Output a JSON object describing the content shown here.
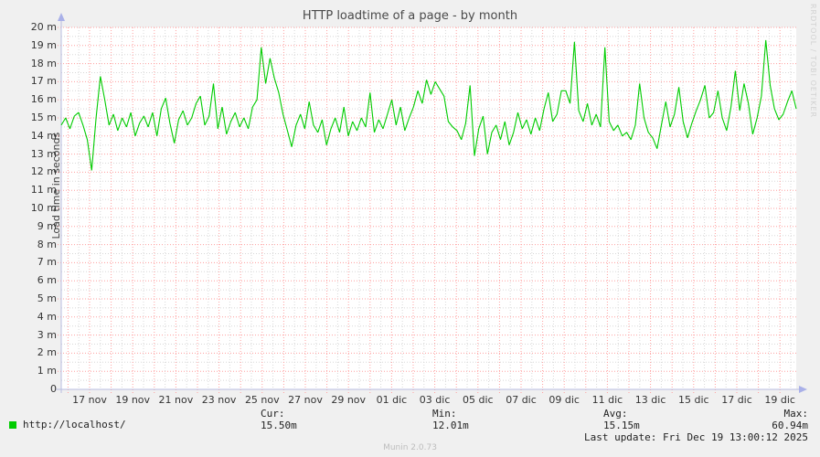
{
  "title": "HTTP loadtime of a page - by month",
  "watermark": "RRDTOOL / TOBI OETIKER",
  "footer": "Munin 2.0.73",
  "y_axis": {
    "label": "Load time in seconds",
    "ticks": [
      "20 m",
      "19 m",
      "18 m",
      "17 m",
      "16 m",
      "15 m",
      "14 m",
      "13 m",
      "12 m",
      "11 m",
      "10 m",
      "9 m",
      "8 m",
      "7 m",
      "6 m",
      "5 m",
      "4 m",
      "3 m",
      "2 m",
      "1 m",
      "0"
    ]
  },
  "x_axis": {
    "ticks": [
      "17 nov",
      "19 nov",
      "21 nov",
      "23 nov",
      "25 nov",
      "27 nov",
      "29 nov",
      "01 dic",
      "03 dic",
      "05 dic",
      "07 dic",
      "09 dic",
      "11 dic",
      "13 dic",
      "15 dic",
      "17 dic",
      "19 dic"
    ]
  },
  "legend": {
    "series_label": "http://localhost/",
    "series_color": "#00cc00",
    "stats": [
      {
        "name": "Cur:",
        "value": "15.50m"
      },
      {
        "name": "Min:",
        "value": "12.01m"
      },
      {
        "name": "Avg:",
        "value": "15.15m"
      },
      {
        "name": "Max:",
        "value": "60.94m"
      }
    ],
    "last_update": "Last update: Fri Dec 19 13:00:12 2025"
  },
  "chart_data": {
    "type": "line",
    "title": "HTTP loadtime of a page - by month",
    "ylabel": "Load time in seconds",
    "y_unit": "m (milliseconds)",
    "ylim": [
      0,
      20
    ],
    "grid": {
      "major_color": "#ff9f9f",
      "minor_color": "#d8d8d8",
      "major_step_y_m": 1,
      "minor_step_y_m": 0.5,
      "major_step_x_days": 1,
      "minor_step_x_days": 0.5
    },
    "x_tick_labels": [
      "17 nov",
      "19 nov",
      "21 nov",
      "23 nov",
      "25 nov",
      "27 nov",
      "29 nov",
      "01 dic",
      "03 dic",
      "05 dic",
      "07 dic",
      "09 dic",
      "11 dic",
      "13 dic",
      "15 dic",
      "17 dic",
      "19 dic"
    ],
    "stats": {
      "cur": "15.50m",
      "min": "12.01m",
      "avg": "15.15m",
      "max": "60.94m"
    },
    "series": [
      {
        "name": "http://localhost/",
        "color": "#00cc00",
        "values_m": [
          14.6,
          15.0,
          14.4,
          15.1,
          15.3,
          14.6,
          13.8,
          12.1,
          15.0,
          17.3,
          16.0,
          14.6,
          15.2,
          14.3,
          15.0,
          14.5,
          15.3,
          14.0,
          14.7,
          15.1,
          14.5,
          15.3,
          14.0,
          15.5,
          16.1,
          14.7,
          13.6,
          14.9,
          15.4,
          14.6,
          15.0,
          15.8,
          16.2,
          14.6,
          15.1,
          16.9,
          14.4,
          15.6,
          14.1,
          14.8,
          15.3,
          14.5,
          15.0,
          14.4,
          15.6,
          16.0,
          18.9,
          16.9,
          18.3,
          17.2,
          16.4,
          15.2,
          14.3,
          13.4,
          14.6,
          15.2,
          14.4,
          15.9,
          14.6,
          14.2,
          14.9,
          13.5,
          14.4,
          15.0,
          14.2,
          15.6,
          14.0,
          14.8,
          14.3,
          15.0,
          14.5,
          16.4,
          14.2,
          14.9,
          14.4,
          15.2,
          16.0,
          14.6,
          15.6,
          14.3,
          15.0,
          15.6,
          16.5,
          15.8,
          17.1,
          16.3,
          17.0,
          16.6,
          16.2,
          14.8,
          14.5,
          14.3,
          13.8,
          14.7,
          16.8,
          12.9,
          14.4,
          15.1,
          13.0,
          14.2,
          14.6,
          13.8,
          14.8,
          13.5,
          14.2,
          15.3,
          14.4,
          14.9,
          14.1,
          15.0,
          14.3,
          15.5,
          16.4,
          14.8,
          15.2,
          16.5,
          16.5,
          15.8,
          19.2,
          15.4,
          14.8,
          15.8,
          14.6,
          15.2,
          14.5,
          18.9,
          14.8,
          14.3,
          14.6,
          14.0,
          14.2,
          13.8,
          14.6,
          16.9,
          15.0,
          14.2,
          13.9,
          13.3,
          14.6,
          15.9,
          14.5,
          15.2,
          16.7,
          14.8,
          13.9,
          14.7,
          15.4,
          16.0,
          16.8,
          15.0,
          15.3,
          16.5,
          15.0,
          14.3,
          15.6,
          17.6,
          15.4,
          16.9,
          15.8,
          14.1,
          15.0,
          16.2,
          19.3,
          16.8,
          15.5,
          14.9,
          15.2,
          15.9,
          16.5,
          15.5
        ]
      }
    ]
  }
}
